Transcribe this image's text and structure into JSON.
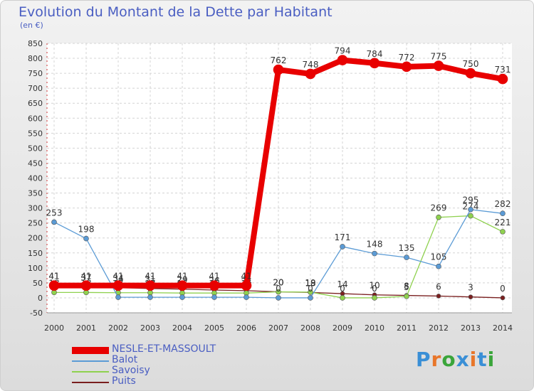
{
  "title": "Evolution du Montant de la Dette par Habitant",
  "unit_label": "(en €)",
  "logo": {
    "text": "Proxiti",
    "letter_colors": [
      "#3a8fd6",
      "#e8762a",
      "#3aa53a",
      "#3a8fd6",
      "#e8762a",
      "#3a8fd6",
      "#3aa53a"
    ]
  },
  "chart_data": {
    "type": "line",
    "title": "Evolution du Montant de la Dette par Habitant",
    "ylabel": "(en €)",
    "x": [
      "2000",
      "2001",
      "2002",
      "2003",
      "2004",
      "2005",
      "2006",
      "2007",
      "2008",
      "2009",
      "2010",
      "2011",
      "2012",
      "2013",
      "2014"
    ],
    "ylim": [
      -50,
      850
    ],
    "yticks": [
      -50,
      0,
      50,
      100,
      150,
      200,
      250,
      300,
      350,
      400,
      450,
      500,
      550,
      600,
      650,
      700,
      750,
      800,
      850
    ],
    "grid": true,
    "legend_position": "bottom-left",
    "series": [
      {
        "name": "Puits",
        "color": "#7a1f1f",
        "values": [
          41,
          37,
          34,
          31,
          29,
          26,
          24,
          20,
          18,
          14,
          10,
          8,
          6,
          3,
          0
        ],
        "labels": [
          "41",
          "37",
          "34",
          "31",
          "29",
          "26",
          "24",
          "20",
          "18",
          "14",
          "10",
          "8",
          "6",
          "3",
          "0"
        ]
      },
      {
        "name": "Savoisy",
        "color": "#8fd14f",
        "values": [
          18,
          18,
          17,
          17,
          16,
          16,
          16,
          20,
          19,
          0,
          0,
          5,
          269,
          274,
          221
        ],
        "labels": [
          "18",
          "18",
          "17",
          "17",
          "16",
          "16",
          "16",
          "20",
          "19",
          "0",
          "0",
          "5",
          "269",
          "274",
          "221"
        ]
      },
      {
        "name": "Balot",
        "color": "#5b9bd5",
        "values": [
          253,
          198,
          2,
          2,
          2,
          2,
          2,
          0,
          0,
          171,
          148,
          135,
          105,
          295,
          282
        ],
        "labels": [
          "253",
          "198",
          "2",
          "2",
          "2",
          "2",
          "2",
          "0",
          "0",
          "171",
          "148",
          "135",
          "105",
          "295",
          "282"
        ]
      },
      {
        "name": "NESLE-ET-MASSOULT",
        "color": "#e80000",
        "values": [
          41,
          41,
          41,
          41,
          41,
          41,
          41,
          762,
          748,
          794,
          784,
          772,
          775,
          750,
          731
        ],
        "labels": [
          "41",
          "41",
          "41",
          "41",
          "41",
          "41",
          "41",
          "762",
          "748",
          "794",
          "784",
          "772",
          "775",
          "750",
          "731"
        ]
      }
    ],
    "legend": [
      "NESLE-ET-MASSOULT",
      "Balot",
      "Savoisy",
      "Puits"
    ]
  }
}
